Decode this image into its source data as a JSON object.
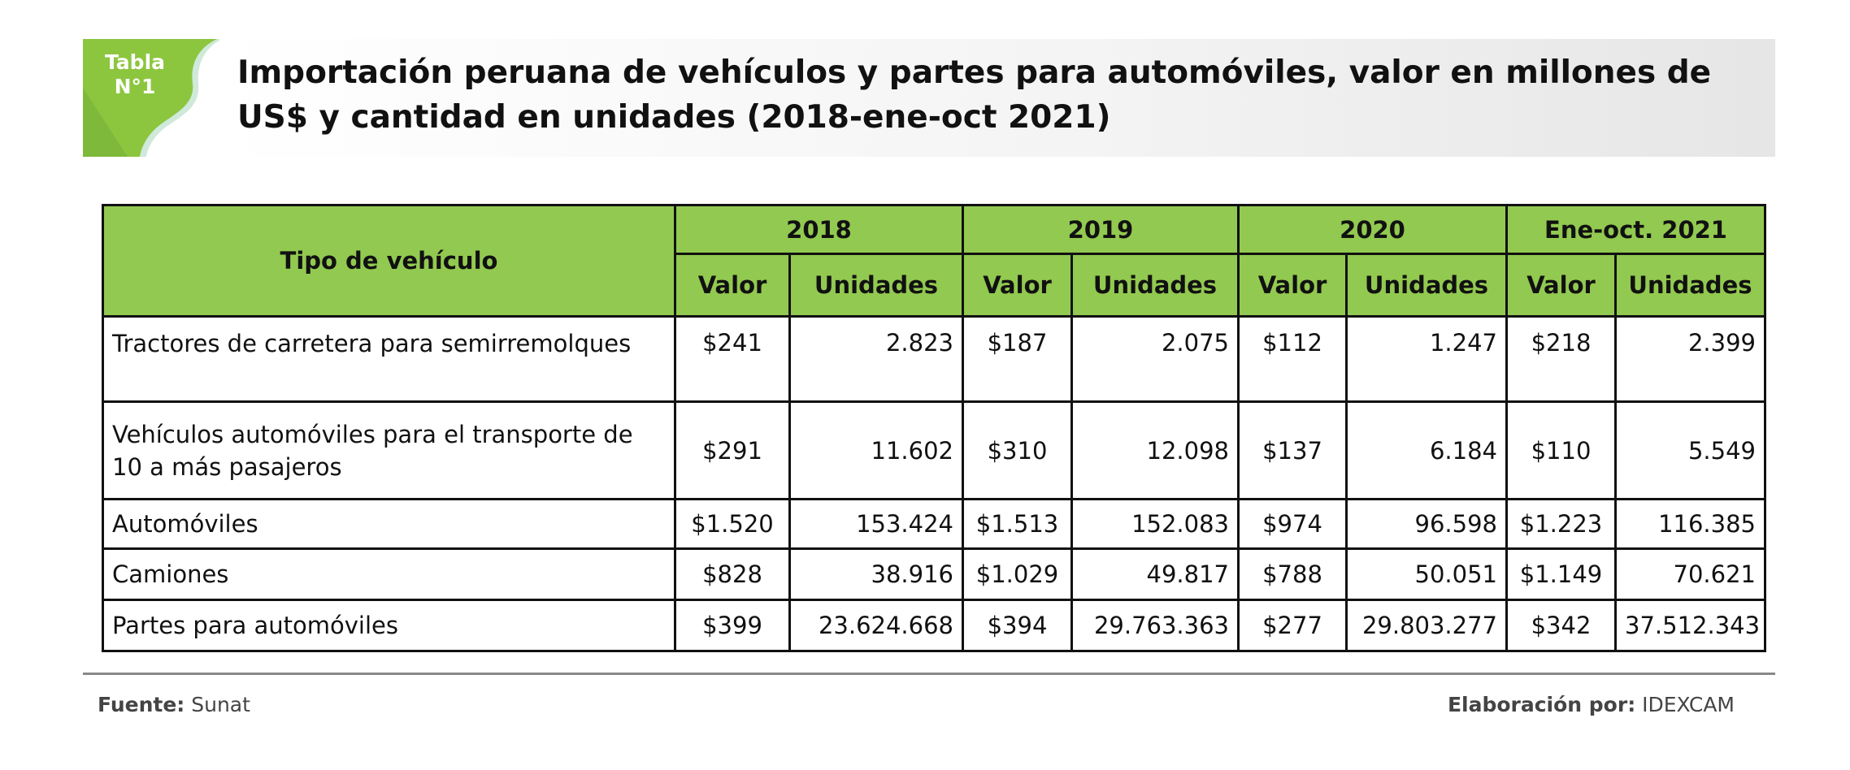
{
  "badge": {
    "line1": "Tabla",
    "line2": "N°1",
    "color": "#8cc63f"
  },
  "title": {
    "line1": "Importación peruana de vehículos y partes para automóviles, valor en millones de",
    "line2": "US$ y cantidad en unidades (2018-ene-oct 2021)"
  },
  "table": {
    "header_color": "#92c950",
    "row_header": "Tipo de vehículo",
    "periods": [
      "2018",
      "2019",
      "2020",
      "Ene-oct. 2021"
    ],
    "subheaders": [
      "Valor",
      "Unidades"
    ],
    "rows": [
      {
        "name": "Tractores de carretera para semirremolques",
        "cells": [
          "$241",
          "2.823",
          "$187",
          "2.075",
          "$112",
          "1.247",
          "$218",
          "2.399"
        ]
      },
      {
        "name": "Vehículos automóviles para el transporte de 10 a más pasajeros",
        "cells": [
          "$291",
          "11.602",
          "$310",
          "12.098",
          "$137",
          "6.184",
          "$110",
          "5.549"
        ]
      },
      {
        "name": "Automóviles",
        "cells": [
          "$1.520",
          "153.424",
          "$1.513",
          "152.083",
          "$974",
          "96.598",
          "$1.223",
          "116.385"
        ]
      },
      {
        "name": "Camiones",
        "cells": [
          "$828",
          "38.916",
          "$1.029",
          "49.817",
          "$788",
          "50.051",
          "$1.149",
          "70.621"
        ]
      },
      {
        "name": "Partes para automóviles",
        "cells": [
          "$399",
          "23.624.668",
          "$394",
          "29.763.363",
          "$277",
          "29.803.277",
          "$342",
          "37.512.343"
        ]
      }
    ]
  },
  "footer": {
    "source_label": "Fuente:",
    "source": "Sunat",
    "author_label": "Elaboración por:",
    "author": "IDEXCAM"
  }
}
